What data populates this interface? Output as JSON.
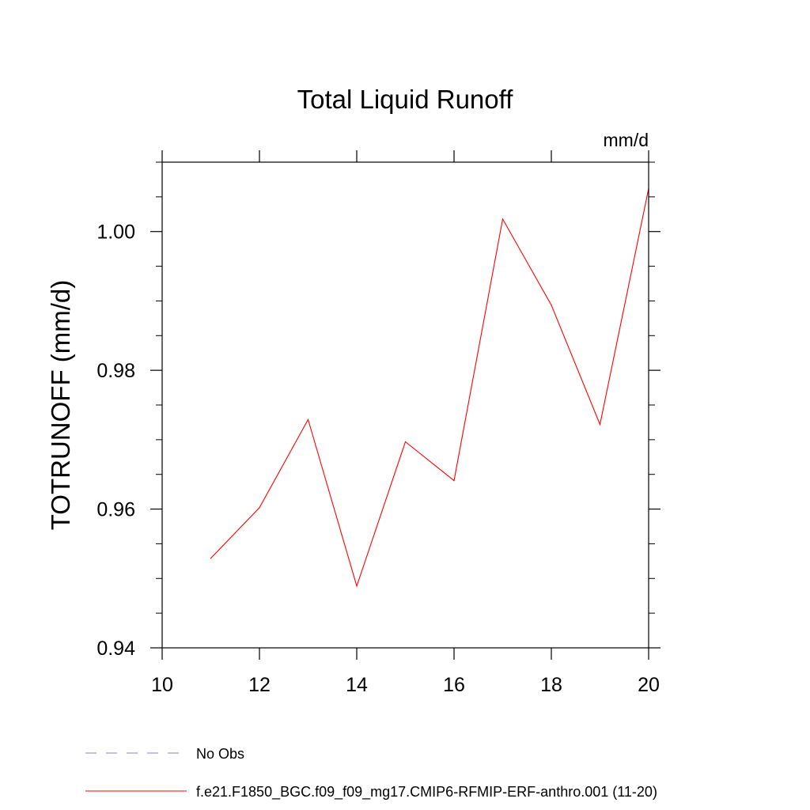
{
  "chart_data": {
    "type": "line",
    "title": "Total Liquid Runoff",
    "units": "mm/d",
    "xlabel": "",
    "ylabel": "TOTRUNOFF  (mm/d)",
    "xlim": [
      10,
      20
    ],
    "ylim": [
      0.94,
      1.01
    ],
    "x_ticks": [
      10,
      12,
      14,
      16,
      18,
      20
    ],
    "x_tick_labels": [
      "10",
      "12",
      "14",
      "16",
      "18",
      "20"
    ],
    "y_ticks": [
      0.94,
      0.96,
      0.98,
      1.0
    ],
    "y_tick_labels": [
      "0.94",
      "0.96",
      "0.98",
      "1.00"
    ],
    "grid": false,
    "legend_position": "bottom-left",
    "series": [
      {
        "name": "f.e21.F1850_BGC.f09_f09_mg17.CMIP6-RFMIP-ERF-anthro.001 (11-20)",
        "color": "#ff0000",
        "dash": "solid",
        "x": [
          11,
          12,
          13,
          14,
          15,
          16,
          17,
          18,
          19,
          20
        ],
        "y": [
          0.9529,
          0.9602,
          0.9729,
          0.9489,
          0.9697,
          0.9641,
          1.0018,
          0.9894,
          0.9722,
          1.0062
        ]
      }
    ],
    "legend": [
      {
        "label": "No Obs",
        "color": "#8c7fbf",
        "dash": "dashed"
      },
      {
        "label": "f.e21.F1850_BGC.f09_f09_mg17.CMIP6-RFMIP-ERF-anthro.001 (11-20)",
        "color": "#ff0000",
        "dash": "solid"
      }
    ]
  }
}
